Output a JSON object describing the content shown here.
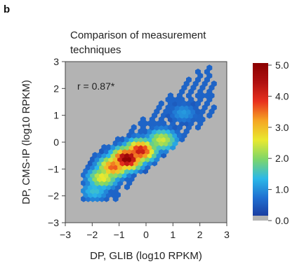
{
  "panel_label": "b",
  "chart_data": {
    "type": "heatmap",
    "title": "Comparison of measurement techniques",
    "title_lines": [
      "Comparison of measurement",
      "techniques"
    ],
    "xlabel": "DP, GLIB (log10 RPKM)",
    "ylabel": "DP, CMS-IP (log10 RPKM)",
    "xlim": [
      -3,
      3
    ],
    "ylim": [
      -3,
      3
    ],
    "xticks": [
      "−3",
      "−2",
      "−1",
      "0",
      "1",
      "2",
      "3"
    ],
    "yticks": [
      "3",
      "2",
      "1",
      "0",
      "−1",
      "−2",
      "−3"
    ],
    "annotation": "r = 0.87*",
    "background_color": "#b3b3b3",
    "colorbar": {
      "min": 0,
      "max": 5,
      "tick_labels": [
        "5.0",
        "4.0",
        "3.0",
        "2.0",
        "1.0",
        "0.0"
      ],
      "colors": [
        "#1a3a9e",
        "#1f6fd1",
        "#2bb8e8",
        "#7dd66a",
        "#e9e92f",
        "#f5a623",
        "#e8311e",
        "#b01010",
        "#8a0000"
      ]
    },
    "density_cores": [
      {
        "x": -0.7,
        "y": -0.6,
        "value": 5.0
      },
      {
        "x": -1.2,
        "y": -0.9,
        "value": 3.6
      },
      {
        "x": -0.2,
        "y": -0.3,
        "value": 4.2
      },
      {
        "x": 0.6,
        "y": 0.1,
        "value": 2.4
      },
      {
        "x": 1.4,
        "y": 1.1,
        "value": 1.0
      },
      {
        "x": -1.6,
        "y": -1.3,
        "value": 2.6
      },
      {
        "x": -1.9,
        "y": -1.8,
        "value": 1.4
      }
    ]
  }
}
